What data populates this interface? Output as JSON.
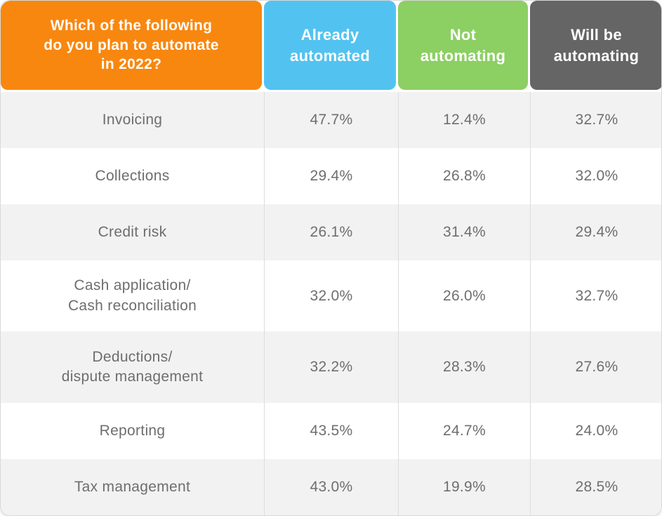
{
  "colors": {
    "question_bg": "#F8870F",
    "already_automated_bg": "#52C3F0",
    "not_automating_bg": "#8CCF63",
    "will_be_automating_bg": "#656565",
    "header_text": "#FFFFFF",
    "body_text": "#6E6E6E",
    "row_alt_bg": "#F2F2F2",
    "row_bg": "#FFFFFF",
    "divider": "#DCDCDC"
  },
  "header": {
    "question": {
      "text": "Which of the following do you plan to automate in 2022?",
      "lines": [
        "Which of the following",
        "do you plan to automate",
        "in 2022?"
      ]
    },
    "columns": [
      {
        "label": "Already automated",
        "lines": [
          "Already",
          "automated"
        ],
        "bg": "#52C3F0"
      },
      {
        "label": "Not automating",
        "lines": [
          "Not",
          "automating"
        ],
        "bg": "#8CCF63"
      },
      {
        "label": "Will be automating",
        "lines": [
          "Will be",
          "automating"
        ],
        "bg": "#656565"
      }
    ]
  },
  "rows": [
    {
      "label": "Invoicing",
      "lines": [
        "Invoicing"
      ],
      "values": [
        "47.7%",
        "12.4%",
        "32.7%"
      ]
    },
    {
      "label": "Collections",
      "lines": [
        "Collections"
      ],
      "values": [
        "29.4%",
        "26.8%",
        "32.0%"
      ]
    },
    {
      "label": "Credit risk",
      "lines": [
        "Credit risk"
      ],
      "values": [
        "26.1%",
        "31.4%",
        "29.4%"
      ]
    },
    {
      "label": "Cash application/ Cash reconciliation",
      "lines": [
        "Cash application/",
        "Cash reconciliation"
      ],
      "values": [
        "32.0%",
        "26.0%",
        "32.7%"
      ]
    },
    {
      "label": "Deductions/ dispute management",
      "lines": [
        "Deductions/",
        "dispute management"
      ],
      "values": [
        "32.2%",
        "28.3%",
        "27.6%"
      ]
    },
    {
      "label": "Reporting",
      "lines": [
        "Reporting"
      ],
      "values": [
        "43.5%",
        "24.7%",
        "24.0%"
      ]
    },
    {
      "label": "Tax management",
      "lines": [
        "Tax management"
      ],
      "values": [
        "43.0%",
        "19.9%",
        "28.5%"
      ]
    }
  ],
  "chart_data": {
    "type": "table",
    "title": "Which of the following do you plan to automate in 2022?",
    "unit": "%",
    "categories": [
      "Invoicing",
      "Collections",
      "Credit risk",
      "Cash application/Cash reconciliation",
      "Deductions/dispute management",
      "Reporting",
      "Tax management"
    ],
    "series": [
      {
        "name": "Already automated",
        "values": [
          47.7,
          29.4,
          26.1,
          32.0,
          32.2,
          43.5,
          43.0
        ]
      },
      {
        "name": "Not automating",
        "values": [
          12.4,
          26.8,
          31.4,
          26.0,
          28.3,
          24.7,
          19.9
        ]
      },
      {
        "name": "Will be automating",
        "values": [
          32.7,
          32.0,
          29.4,
          32.7,
          27.6,
          24.0,
          28.5
        ]
      }
    ]
  }
}
